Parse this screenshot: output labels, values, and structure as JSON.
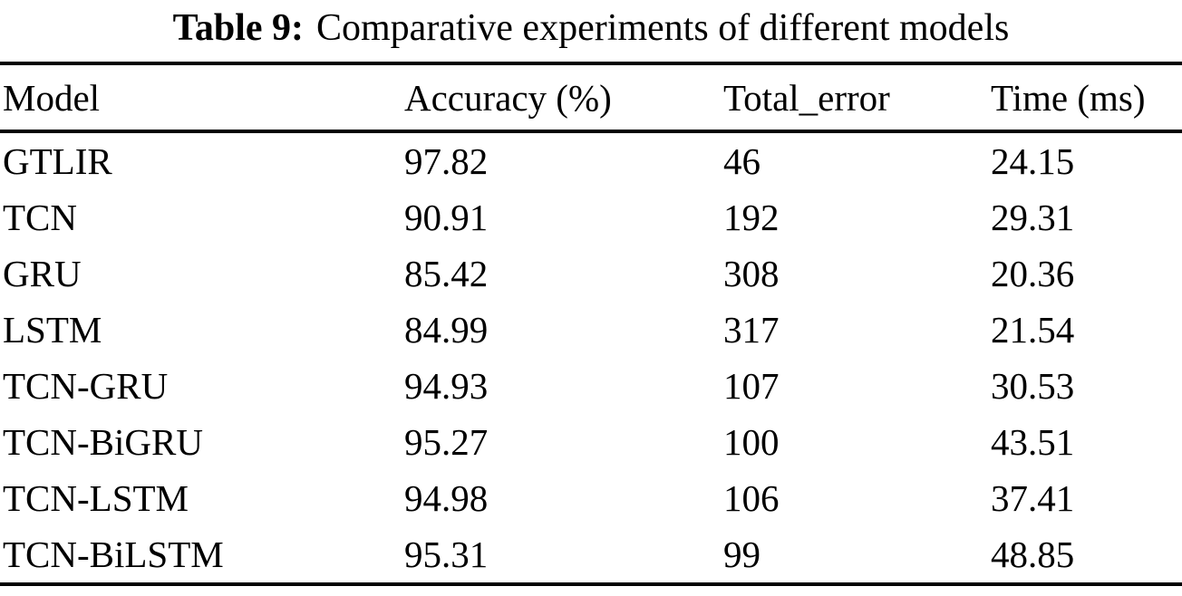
{
  "caption": {
    "label": "Table 9:",
    "text": "Comparative experiments of different models"
  },
  "chart_data": {
    "type": "table",
    "title": "Table 9: Comparative experiments of different models",
    "columns": [
      "Model",
      "Accuracy (%)",
      "Total_error",
      "Time (ms)"
    ],
    "rows": [
      [
        "GTLIR",
        "97.82",
        "46",
        "24.15"
      ],
      [
        "TCN",
        "90.91",
        "192",
        "29.31"
      ],
      [
        "GRU",
        "85.42",
        "308",
        "20.36"
      ],
      [
        "LSTM",
        "84.99",
        "317",
        "21.54"
      ],
      [
        "TCN-GRU",
        "94.93",
        "107",
        "30.53"
      ],
      [
        "TCN-BiGRU",
        "95.27",
        "100",
        "43.51"
      ],
      [
        "TCN-LSTM",
        "94.98",
        "106",
        "37.41"
      ],
      [
        "TCN-BiLSTM",
        "95.31",
        "99",
        "48.85"
      ]
    ]
  }
}
